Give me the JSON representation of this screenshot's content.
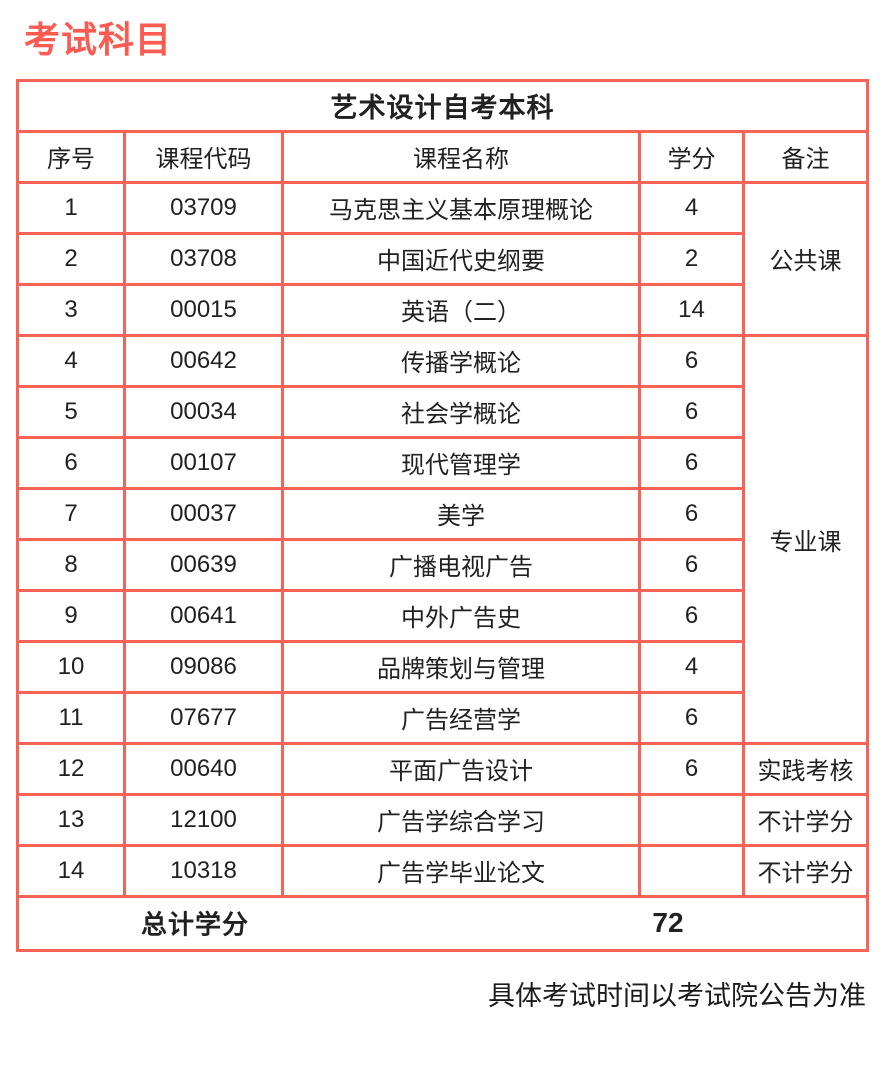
{
  "page_title": "考试科目",
  "colors": {
    "accent": "#fb5b50",
    "table_border": "#f96257",
    "text": "#212121"
  },
  "table": {
    "title": "艺术设计自考本科",
    "headers": [
      "序号",
      "课程代码",
      "课程名称",
      "学分",
      "备注"
    ],
    "rows": [
      {
        "no": "1",
        "code": "03709",
        "name": "马克思主义基本原理概论",
        "credits": "4"
      },
      {
        "no": "2",
        "code": "03708",
        "name": "中国近代史纲要",
        "credits": "2"
      },
      {
        "no": "3",
        "code": "00015",
        "name": "英语（二）",
        "credits": "14"
      },
      {
        "no": "4",
        "code": "00642",
        "name": "传播学概论",
        "credits": "6"
      },
      {
        "no": "5",
        "code": "00034",
        "name": "社会学概论",
        "credits": "6"
      },
      {
        "no": "6",
        "code": "00107",
        "name": "现代管理学",
        "credits": "6"
      },
      {
        "no": "7",
        "code": "00037",
        "name": "美学",
        "credits": "6"
      },
      {
        "no": "8",
        "code": "00639",
        "name": "广播电视广告",
        "credits": "6"
      },
      {
        "no": "9",
        "code": "00641",
        "name": "中外广告史",
        "credits": "6"
      },
      {
        "no": "10",
        "code": "09086",
        "name": "品牌策划与管理",
        "credits": "4"
      },
      {
        "no": "11",
        "code": "07677",
        "name": "广告经营学",
        "credits": "6"
      },
      {
        "no": "12",
        "code": "00640",
        "name": "平面广告设计",
        "credits": "6",
        "remark": "实践考核"
      },
      {
        "no": "13",
        "code": "12100",
        "name": "广告学综合学习",
        "credits": "",
        "remark": "不计学分"
      },
      {
        "no": "14",
        "code": "10318",
        "name": "广告学毕业论文",
        "credits": "",
        "remark": "不计学分"
      }
    ],
    "merged_remarks": [
      {
        "label": "公共课",
        "from_row": 1,
        "to_row": 3
      },
      {
        "label": "专业课",
        "from_row": 4,
        "to_row": 11
      }
    ],
    "total_label": "总计学分",
    "total_value": "72"
  },
  "footer_note": "具体考试时间以考试院公告为准"
}
